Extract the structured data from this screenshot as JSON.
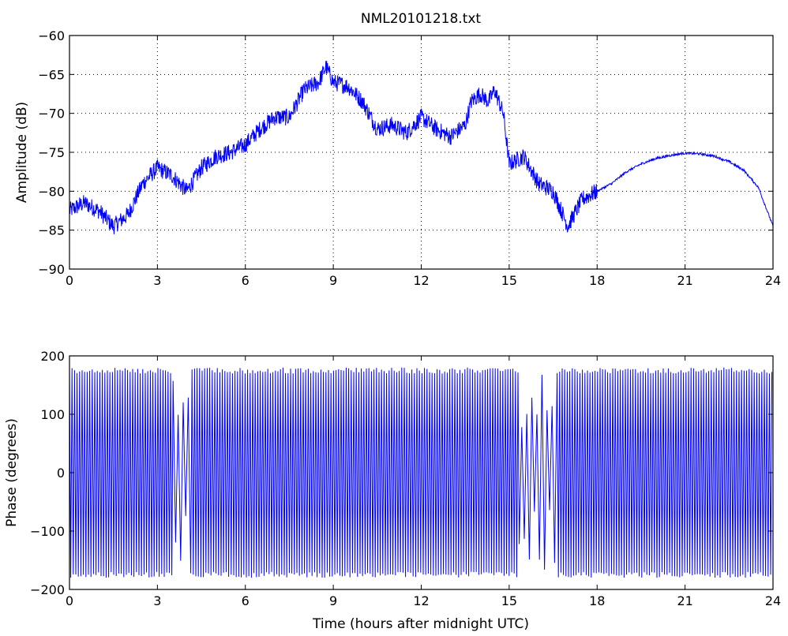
{
  "figure": {
    "title": "NML20101218.txt"
  },
  "chart_data": [
    {
      "type": "line",
      "title": "NML20101218.txt",
      "xlabel": "",
      "ylabel": "Amplitude (dB)",
      "xlim": [
        0,
        24
      ],
      "ylim": [
        -90,
        -60
      ],
      "xticks": [
        0,
        3,
        6,
        9,
        12,
        15,
        18,
        21,
        24
      ],
      "yticks": [
        -90,
        -85,
        -80,
        -75,
        -70,
        -65,
        -60
      ],
      "grid": true,
      "color": "#0000ff",
      "series": [
        {
          "x": [
            0,
            0.5,
            1.0,
            1.5,
            2.0,
            2.5,
            3.0,
            3.5,
            4.0,
            4.5,
            5.0,
            5.5,
            6.0,
            6.5,
            7.0,
            7.5,
            8.0,
            8.5,
            8.75,
            9.0,
            9.5,
            10.0,
            10.5,
            11.0,
            11.5,
            12.0,
            12.5,
            13.0,
            13.5,
            13.7,
            14.0,
            14.3,
            14.5,
            14.8,
            15.0,
            15.5,
            16.0,
            16.5,
            17.0,
            17.5,
            18.0,
            18.5,
            19.0,
            19.5,
            20.0,
            20.5,
            21.0,
            21.5,
            22.0,
            22.5,
            23.0,
            23.5,
            24.0
          ],
          "y": [
            -82.5,
            -81.5,
            -82.5,
            -84.5,
            -83.0,
            -79.0,
            -77.0,
            -78.0,
            -80.0,
            -77.0,
            -75.5,
            -75.0,
            -74.0,
            -72.0,
            -70.5,
            -70.5,
            -67.0,
            -66.0,
            -64.0,
            -66.0,
            -66.5,
            -68.5,
            -72.0,
            -71.5,
            -72.5,
            -70.5,
            -72.0,
            -73.0,
            -71.5,
            -68.5,
            -67.5,
            -68.5,
            -67.0,
            -70.0,
            -76.5,
            -75.5,
            -79.0,
            -80.0,
            -84.5,
            -81.0,
            -80.0,
            -79.0,
            -77.5,
            -76.5,
            -75.8,
            -75.4,
            -75.1,
            -75.2,
            -75.5,
            -76.2,
            -77.3,
            -79.5,
            -84.5
          ]
        }
      ]
    },
    {
      "type": "line",
      "title": "",
      "xlabel": "Time (hours after midnight UTC)",
      "ylabel": "Phase (degrees)",
      "xlim": [
        0,
        24
      ],
      "ylim": [
        -200,
        200
      ],
      "xticks": [
        0,
        3,
        6,
        9,
        12,
        15,
        18,
        21,
        24
      ],
      "yticks": [
        -200,
        -100,
        0,
        100,
        200
      ],
      "grid": false,
      "color": "#0000ff",
      "series": [
        {
          "x": [
            0,
            24
          ],
          "y": [
            -180,
            180
          ]
        }
      ]
    }
  ]
}
